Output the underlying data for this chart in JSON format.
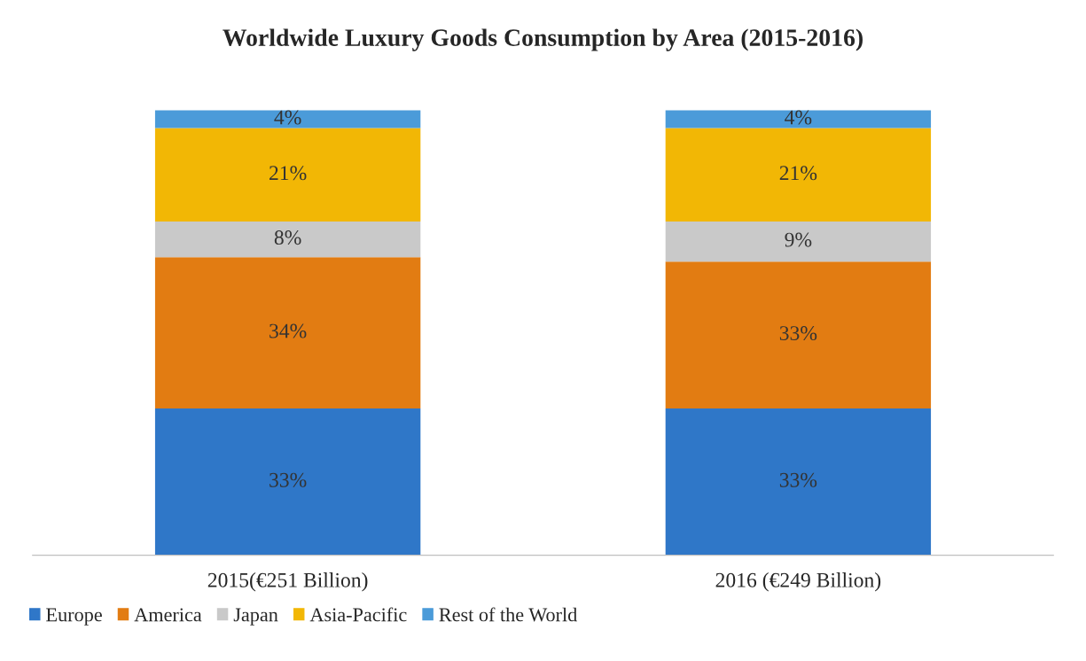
{
  "chart_data": {
    "type": "bar",
    "title": "Worldwide Luxury Goods Consumption by Area (2015-2016)",
    "categories": [
      "2015(€251 Billion)",
      "2016 (€249 Billion)"
    ],
    "stacked": true,
    "legend": "bottom",
    "grid": false,
    "series": [
      {
        "name": "Europe",
        "color": "#2f77c8",
        "values": [
          33,
          33
        ],
        "value_labels": [
          "33%",
          "33%"
        ]
      },
      {
        "name": "America",
        "color": "#e27c12",
        "values": [
          34,
          33
        ],
        "value_labels": [
          "34%",
          "33%"
        ]
      },
      {
        "name": "Japan",
        "color": "#c9c9c9",
        "values": [
          8,
          9
        ],
        "value_labels": [
          "8%",
          "9%"
        ]
      },
      {
        "name": "Asia-Pacific",
        "color": "#f2b705",
        "values": [
          21,
          21
        ],
        "value_labels": [
          "21%",
          "21%"
        ]
      },
      {
        "name": "Rest of the World",
        "color": "#4b9bd9",
        "values": [
          4,
          4
        ],
        "value_labels": [
          "4%",
          "4%"
        ]
      }
    ]
  }
}
